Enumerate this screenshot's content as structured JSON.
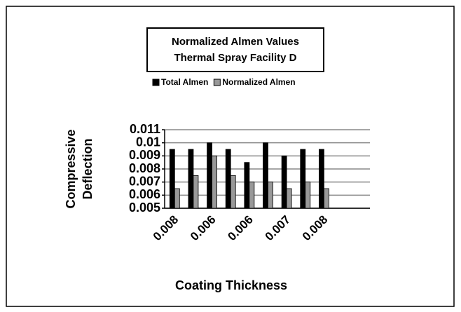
{
  "chart_data": {
    "type": "bar",
    "title": [
      "Normalized Almen Values",
      "Thermal Spray Facility D"
    ],
    "categories": [
      "0.008",
      null,
      "0.006",
      null,
      "0.006",
      null,
      "0.007",
      null,
      "0.008",
      null,
      null
    ],
    "series": [
      {
        "name": "Total Almen",
        "color": "#000000",
        "values": [
          0.0095,
          0.0095,
          0.01,
          0.0095,
          0.0085,
          0.01,
          0.009,
          0.0095,
          0.0095,
          null,
          null
        ]
      },
      {
        "name": "Normalized Almen",
        "color": "#999999",
        "values": [
          0.0065,
          0.0075,
          0.009,
          0.0075,
          0.007,
          0.007,
          0.0065,
          0.007,
          0.0065,
          null,
          null
        ]
      }
    ],
    "ylabel": [
      "Compressive",
      "Deflection"
    ],
    "xlabel": "Coating Thickness",
    "ylim": [
      0.005,
      0.011
    ],
    "yticks": [
      0.005,
      0.006,
      0.007,
      0.008,
      0.009,
      0.01,
      0.011
    ],
    "grid": true
  }
}
